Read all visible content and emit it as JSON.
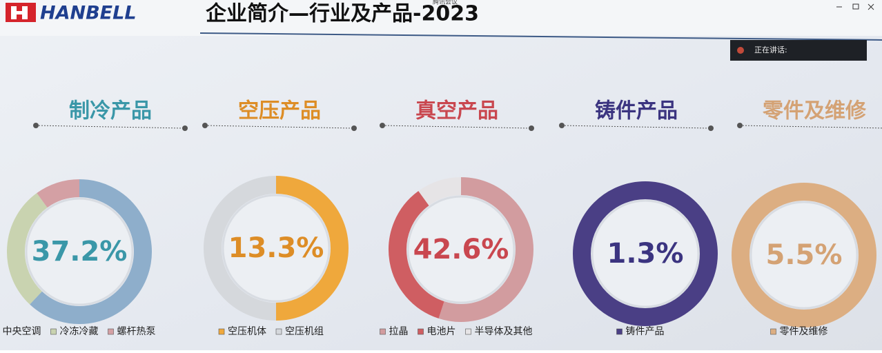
{
  "app_title": "腾讯会议",
  "speaking_label": "正在讲话:",
  "logo_text": "HANBELL",
  "header_title": "企业简介—行业及产品-2023",
  "chart_data": [
    {
      "type": "donut",
      "title": "制冷产品",
      "center_label": "37.2%",
      "title_color": "#3a97a8",
      "categories": [
        "中央空调",
        "冷冻冷藏",
        "螺杆热泵"
      ],
      "values": [
        62,
        28,
        10
      ],
      "colors": [
        "#8eaecb",
        "#c9d3b0",
        "#d4a0a4"
      ]
    },
    {
      "type": "donut",
      "title": "空压产品",
      "center_label": "13.3%",
      "title_color": "#dd8d26",
      "categories": [
        "空压机体",
        "空压机组"
      ],
      "values": [
        50,
        50
      ],
      "colors": [
        "#efa83c",
        "#d5d8dc"
      ]
    },
    {
      "type": "donut",
      "title": "真空产品",
      "center_label": "42.6%",
      "title_color": "#c9474f",
      "categories": [
        "拉晶",
        "电池片",
        "半导体及其他"
      ],
      "values": [
        55,
        35,
        10
      ],
      "colors": [
        "#d29c9f",
        "#cf5e62",
        "#e6e4e6"
      ]
    },
    {
      "type": "donut",
      "title": "铸件产品",
      "center_label": "1.3%",
      "title_color": "#3b3480",
      "categories": [
        "铸件产品"
      ],
      "values": [
        100
      ],
      "colors": [
        "#4a3f85"
      ]
    },
    {
      "type": "donut",
      "title": "零件及维修",
      "center_label": "5.5%",
      "title_color": "#d4a274",
      "categories": [
        "零件及维修"
      ],
      "values": [
        100
      ],
      "colors": [
        "#dcae82"
      ]
    }
  ]
}
